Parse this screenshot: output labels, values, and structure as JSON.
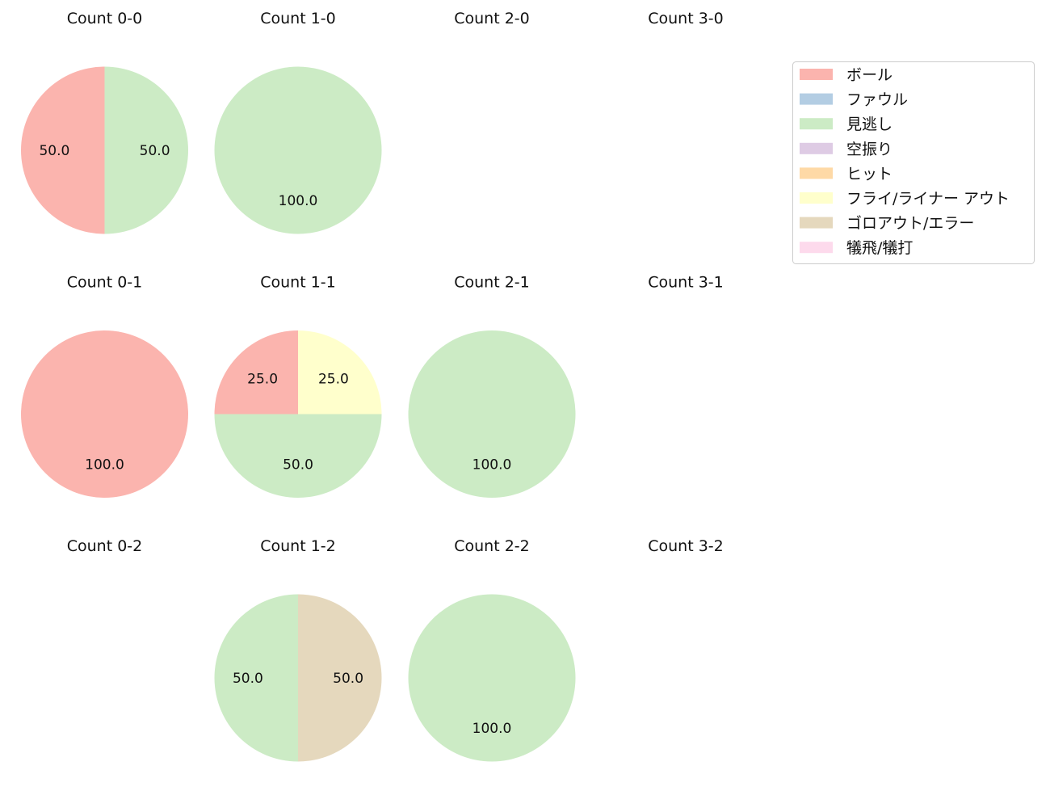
{
  "legend": {
    "entries": [
      {
        "label": "ボール",
        "color": "#fbb4ae"
      },
      {
        "label": "ファウル",
        "color": "#b3cde3"
      },
      {
        "label": "見逃し",
        "color": "#ccebc5"
      },
      {
        "label": "空振り",
        "color": "#decbe4"
      },
      {
        "label": "ヒット",
        "color": "#fed9a6"
      },
      {
        "label": "フライ/ライナー アウト",
        "color": "#ffffcc"
      },
      {
        "label": "ゴロアウト/エラー",
        "color": "#e5d8bd"
      },
      {
        "label": "犠飛/犠打",
        "color": "#fddaec"
      }
    ]
  },
  "chart_data": [
    {
      "type": "pie",
      "title": "Count 0-0",
      "slices": [
        {
          "label": "ボール",
          "value": 50.0
        },
        {
          "label": "見逃し",
          "value": 50.0
        }
      ]
    },
    {
      "type": "pie",
      "title": "Count 1-0",
      "slices": [
        {
          "label": "見逃し",
          "value": 100.0
        }
      ]
    },
    {
      "type": "pie",
      "title": "Count 2-0",
      "slices": []
    },
    {
      "type": "pie",
      "title": "Count 3-0",
      "slices": []
    },
    {
      "type": "pie",
      "title": "Count 0-1",
      "slices": [
        {
          "label": "ボール",
          "value": 100.0
        }
      ]
    },
    {
      "type": "pie",
      "title": "Count 1-1",
      "slices": [
        {
          "label": "ボール",
          "value": 25.0
        },
        {
          "label": "見逃し",
          "value": 50.0
        },
        {
          "label": "フライ/ライナー アウト",
          "value": 25.0
        }
      ]
    },
    {
      "type": "pie",
      "title": "Count 2-1",
      "slices": [
        {
          "label": "見逃し",
          "value": 100.0
        }
      ]
    },
    {
      "type": "pie",
      "title": "Count 3-1",
      "slices": []
    },
    {
      "type": "pie",
      "title": "Count 0-2",
      "slices": []
    },
    {
      "type": "pie",
      "title": "Count 1-2",
      "slices": [
        {
          "label": "見逃し",
          "value": 50.0
        },
        {
          "label": "ゴロアウト/エラー",
          "value": 50.0
        }
      ]
    },
    {
      "type": "pie",
      "title": "Count 2-2",
      "slices": [
        {
          "label": "見逃し",
          "value": 100.0
        }
      ]
    },
    {
      "type": "pie",
      "title": "Count 3-2",
      "slices": []
    }
  ]
}
